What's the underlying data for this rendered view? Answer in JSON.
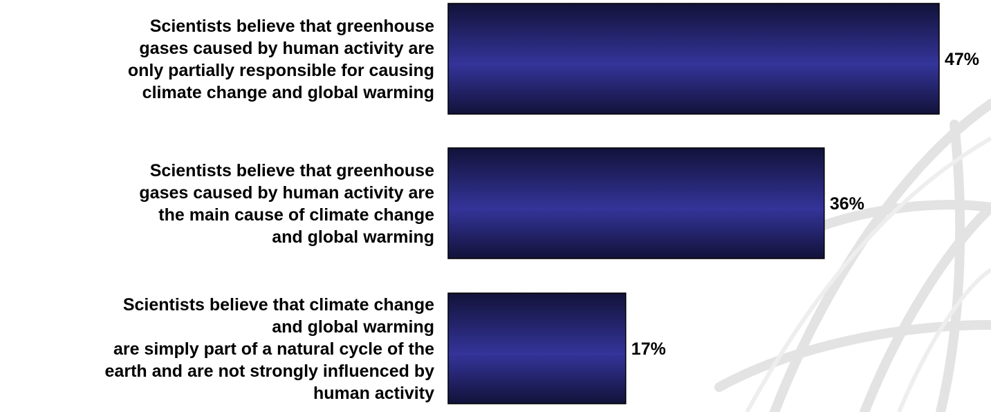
{
  "colors": {
    "bar_dark": "#14143f",
    "bar_light": "#34349a",
    "bar_border": "#000000",
    "watermark": "#e6e6e6"
  },
  "chart_data": {
    "type": "bar",
    "orientation": "horizontal",
    "grid": false,
    "legend": "none",
    "xlim": [
      0,
      47
    ],
    "categories": [
      [
        "Scientists believe that greenhouse",
        "gases caused by human activity are",
        "only partially responsible for causing",
        "climate change and global warming"
      ],
      [
        "Scientists believe that greenhouse",
        "gases caused by human activity are",
        "the main cause of climate change",
        "and global warming"
      ],
      [
        "Scientists believe that climate change",
        "and global warming",
        "are simply part of a natural cycle of the",
        "earth and are not strongly influenced by",
        "human activity"
      ]
    ],
    "values": [
      47,
      36,
      17
    ],
    "value_labels": [
      "47%",
      "36%",
      "17%"
    ]
  }
}
